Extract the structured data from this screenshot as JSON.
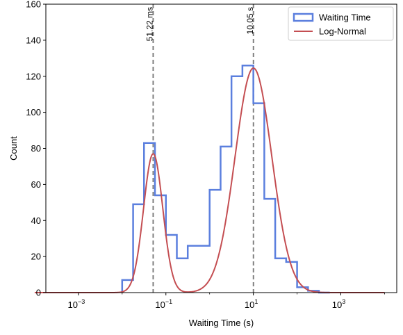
{
  "chart_data": {
    "type": "histogram",
    "title": "",
    "xlabel": "Waiting Time (s)",
    "ylabel": "Count",
    "x_scale": "log",
    "xlim": [
      0.00018,
      19000
    ],
    "ylim": [
      0,
      160
    ],
    "grid": false,
    "x_ticks": [
      {
        "base": "10",
        "exp": "−3",
        "value": 0.001
      },
      {
        "base": "10",
        "exp": "−1",
        "value": 0.1
      },
      {
        "base": "10",
        "exp": "1",
        "value": 10
      },
      {
        "base": "10",
        "exp": "3",
        "value": 1000
      }
    ],
    "y_ticks": [
      0,
      20,
      40,
      60,
      80,
      100,
      120,
      140,
      160
    ],
    "histogram": {
      "name": "Waiting Time",
      "color": "#5b7fde",
      "bin_edges": [
        0.01,
        0.0178,
        0.0316,
        0.0562,
        0.1,
        0.178,
        0.316,
        1.0,
        1.78,
        3.16,
        5.62,
        10,
        17.8,
        31.6,
        56.2,
        100,
        178,
        316,
        562
      ],
      "counts": [
        7,
        49,
        83,
        54,
        32,
        19,
        26,
        57,
        81,
        120,
        126,
        105,
        52,
        19,
        17,
        3,
        1,
        0
      ]
    },
    "fit": {
      "name": "Log-Normal",
      "color": "#c44e52",
      "components": [
        {
          "median": 0.05122,
          "log10_sigma": 0.22,
          "peak": 77
        },
        {
          "median": 10.05,
          "log10_sigma": 0.42,
          "peak": 124.5
        }
      ],
      "x_range": [
        0.0001,
        10000
      ]
    },
    "vlines": [
      {
        "x": 0.05122,
        "label": "51.22 ms",
        "color": "#808080"
      },
      {
        "x": 10.05,
        "label": "10.05 s",
        "color": "#808080"
      }
    ],
    "legend": {
      "position": "top-right",
      "entries": [
        {
          "label": "Waiting Time",
          "kind": "box",
          "color": "#5b7fde"
        },
        {
          "label": "Log-Normal",
          "kind": "line",
          "color": "#c44e52"
        }
      ]
    }
  }
}
